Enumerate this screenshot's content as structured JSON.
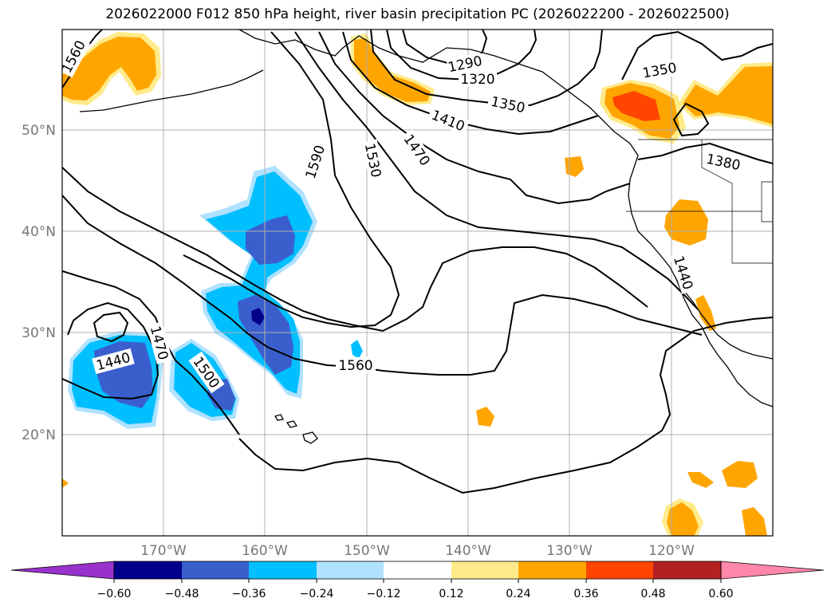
{
  "title": "2026022000 F012 850 hPa height, river basin precipitation PC (2026022200 - 2026022500)",
  "map": {
    "lat_labels": [
      "50°N",
      "40°N",
      "30°N",
      "20°N"
    ],
    "lon_labels": [
      "170°W",
      "160°W",
      "150°W",
      "140°W",
      "130°W",
      "120°W"
    ],
    "contour_labels": [
      "1560",
      "1290",
      "1320",
      "1350",
      "1350",
      "1410",
      "1470",
      "1530",
      "1590",
      "1380",
      "1440",
      "1440",
      "1470",
      "1500",
      "1560"
    ]
  },
  "colorbar": {
    "ticks": [
      "−0.60",
      "−0.48",
      "−0.36",
      "−0.24",
      "−0.12",
      "0.12",
      "0.24",
      "0.36",
      "0.48",
      "0.60"
    ],
    "colors": [
      "#9932cc",
      "#00008b",
      "#3a5fcd",
      "#00bfff",
      "#b0e2ff",
      "#ffffff",
      "#ffeb8a",
      "#ffa500",
      "#ff4500",
      "#b22222",
      "#ff88aa"
    ]
  },
  "colors": {
    "neg_light": "#b0e2ff",
    "neg_mid": "#00bfff",
    "neg_strong": "#3a5fcd",
    "neg_max": "#00008b",
    "pos_light": "#ffeb8a",
    "pos_mid": "#ffa500",
    "pos_strong": "#ff4500"
  }
}
